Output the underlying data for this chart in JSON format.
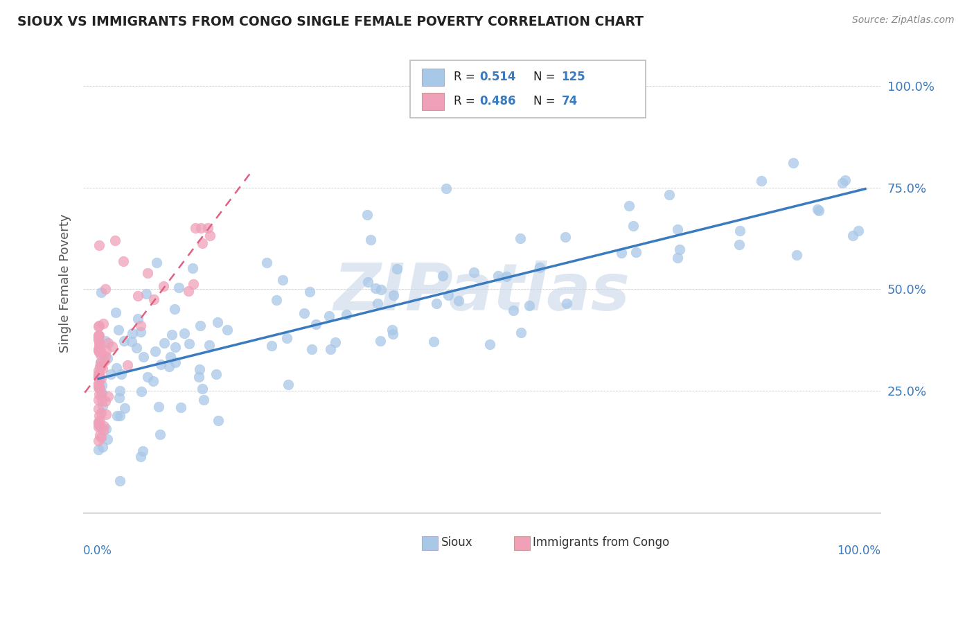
{
  "title": "SIOUX VS IMMIGRANTS FROM CONGO SINGLE FEMALE POVERTY CORRELATION CHART",
  "source": "Source: ZipAtlas.com",
  "ylabel": "Single Female Poverty",
  "legend_sioux_R": "0.514",
  "legend_sioux_N": "125",
  "legend_congo_R": "0.486",
  "legend_congo_N": "74",
  "legend_label1": "Sioux",
  "legend_label2": "Immigrants from Congo",
  "sioux_color": "#a8c8e8",
  "congo_color": "#f0a0b8",
  "trend_sioux_color": "#3a7abf",
  "trend_congo_color": "#e06080",
  "watermark": "ZIPatlas",
  "watermark_color": "#c8d8e8",
  "xlim": [
    0.0,
    1.0
  ],
  "ylim": [
    0.0,
    1.05
  ],
  "yticks": [
    0.25,
    0.5,
    0.75,
    1.0
  ],
  "ytick_labels": [
    "25.0%",
    "50.0%",
    "75.0%",
    "100.0%"
  ],
  "grid_color": "#cccccc",
  "title_color": "#222222",
  "source_color": "#888888",
  "label_color": "#3a7abf"
}
